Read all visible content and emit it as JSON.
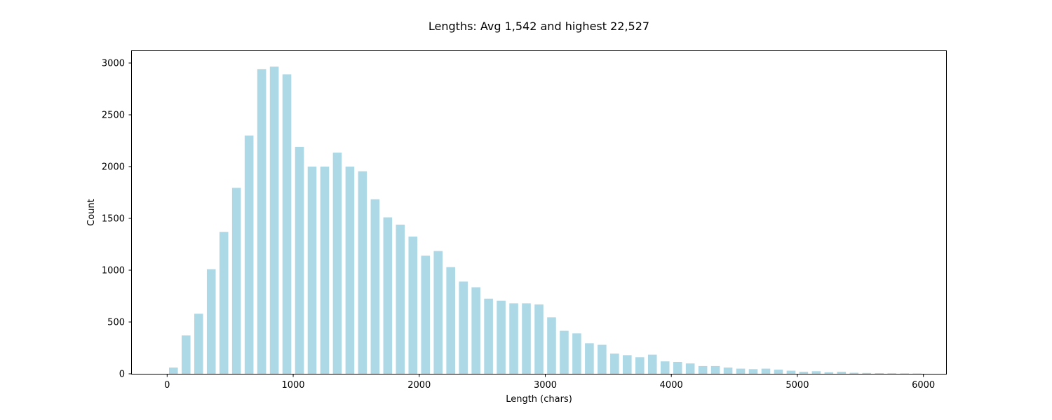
{
  "chart_data": {
    "type": "bar",
    "title": "Lengths: Avg 1,542 and highest 22,527",
    "xlabel": "Length (chars)",
    "ylabel": "Count",
    "xlim": [
      -280,
      6180
    ],
    "ylim": [
      0,
      3115
    ],
    "xticks": [
      0,
      1000,
      2000,
      3000,
      4000,
      5000,
      6000
    ],
    "yticks": [
      0,
      500,
      1000,
      1500,
      2000,
      2500,
      3000
    ],
    "bin_width": 100,
    "bar_width": 70,
    "grid": false,
    "bar_color": "#add8e6",
    "x": [
      50,
      150,
      250,
      350,
      450,
      550,
      650,
      750,
      850,
      950,
      1050,
      1150,
      1250,
      1350,
      1450,
      1550,
      1650,
      1750,
      1850,
      1950,
      2050,
      2150,
      2250,
      2350,
      2450,
      2550,
      2650,
      2750,
      2850,
      2950,
      3050,
      3150,
      3250,
      3350,
      3450,
      3550,
      3650,
      3750,
      3850,
      3950,
      4050,
      4150,
      4250,
      4350,
      4450,
      4550,
      4650,
      4750,
      4850,
      4950,
      5050,
      5150,
      5250,
      5350,
      5450,
      5550,
      5650,
      5750,
      5850,
      5950
    ],
    "values": [
      60,
      370,
      580,
      1010,
      1370,
      1795,
      2300,
      2940,
      2965,
      2890,
      2190,
      2000,
      2000,
      2135,
      2000,
      1955,
      1685,
      1510,
      1440,
      1325,
      1140,
      1185,
      1030,
      890,
      835,
      725,
      705,
      680,
      680,
      670,
      545,
      415,
      390,
      295,
      280,
      195,
      180,
      160,
      185,
      120,
      115,
      100,
      75,
      75,
      60,
      50,
      45,
      50,
      40,
      30,
      20,
      25,
      15,
      20,
      10,
      8,
      6,
      5,
      4,
      3
    ]
  }
}
